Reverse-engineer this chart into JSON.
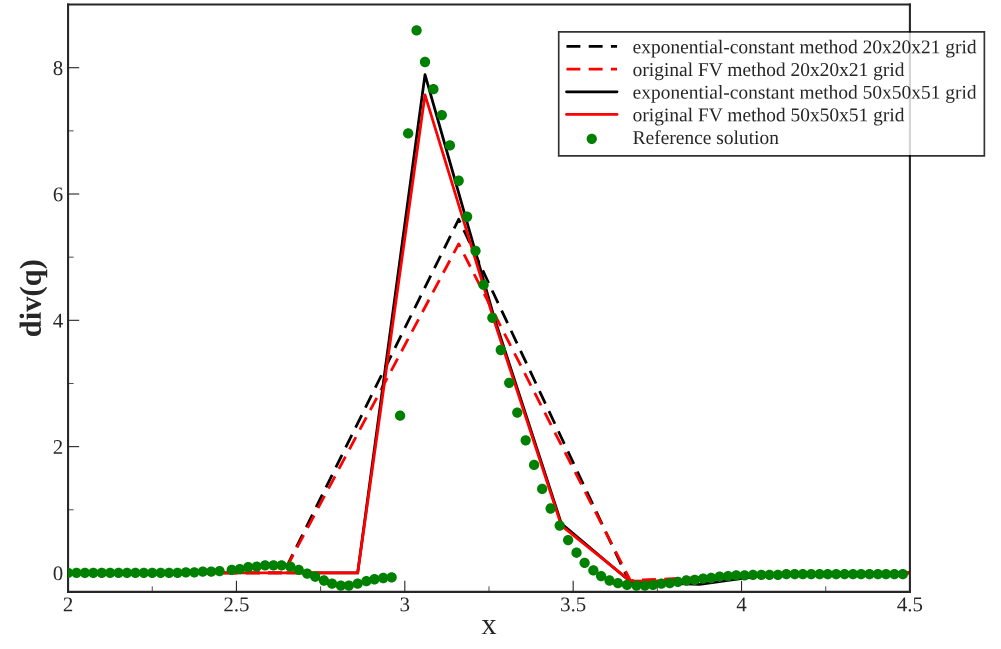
{
  "chart_data": {
    "type": "line",
    "xlabel": "x",
    "ylabel": "div(q)",
    "xlim": [
      2,
      4.5
    ],
    "ylim": [
      -0.3,
      9
    ],
    "xticks": [
      2,
      2.5,
      3,
      3.5,
      4,
      4.5
    ],
    "yticks": [
      0,
      2,
      4,
      6,
      8
    ],
    "grid": false,
    "legend": "top right",
    "series": [
      {
        "name": "exponential-constant method 20x20x21 grid",
        "line_style": "dashed",
        "color": "#000000",
        "x": [
          2.0,
          2.13,
          2.64,
          3.16,
          3.67,
          4.18,
          4.5
        ],
        "values": [
          0,
          0,
          0,
          5.6,
          -0.18,
          0,
          0
        ]
      },
      {
        "name": "original FV method 20x20x21 grid",
        "line_style": "dashed",
        "color": "#ff0000",
        "x": [
          2.0,
          2.13,
          2.64,
          3.16,
          3.67,
          4.18,
          4.5
        ],
        "values": [
          0,
          0,
          0,
          5.21,
          -0.12,
          0,
          0
        ]
      },
      {
        "name": "exponential-constant method 50x50x51 grid",
        "line_style": "solid",
        "color": "#000000",
        "x": [
          2.65,
          2.86,
          3.06,
          3.265,
          3.465,
          3.67,
          3.875,
          4.08,
          4.28,
          4.49,
          4.5
        ],
        "values": [
          0,
          0,
          7.89,
          4.05,
          0.78,
          -0.14,
          -0.18,
          -0.03,
          0,
          0,
          0
        ]
      },
      {
        "name": "original FV method 50x50x51 grid",
        "line_style": "solid",
        "color": "#ff0000",
        "x": [
          2.24,
          2.45,
          2.65,
          2.86,
          3.06,
          3.265,
          3.465,
          3.67,
          3.875,
          4.08,
          4.28,
          4.49,
          4.5
        ],
        "values": [
          0,
          0,
          0,
          0,
          7.57,
          4.0,
          0.75,
          -0.13,
          -0.12,
          -0.03,
          0,
          0,
          0
        ]
      },
      {
        "name": "Reference solution",
        "type": "scatter",
        "marker": "circle",
        "color": "#008000",
        "x": [
          2.0,
          2.025,
          2.05,
          2.075,
          2.1,
          2.125,
          2.15,
          2.175,
          2.2,
          2.225,
          2.25,
          2.275,
          2.3,
          2.325,
          2.35,
          2.375,
          2.4,
          2.425,
          2.45,
          2.486,
          2.51,
          2.535,
          2.56,
          2.585,
          2.61,
          2.634,
          2.66,
          2.685,
          2.71,
          2.734,
          2.76,
          2.784,
          2.81,
          2.834,
          2.86,
          2.886,
          2.91,
          2.936,
          2.961,
          2.986,
          3.01,
          3.035,
          3.06,
          3.085,
          3.11,
          3.134,
          3.16,
          3.185,
          3.21,
          3.234,
          3.26,
          3.285,
          3.31,
          3.334,
          3.359,
          3.384,
          3.408,
          3.433,
          3.46,
          3.485,
          3.51,
          3.534,
          3.56,
          3.583,
          3.608,
          3.633,
          3.66,
          3.688,
          3.713,
          3.737,
          3.762,
          3.787,
          3.811,
          3.836,
          3.861,
          3.886,
          3.91,
          3.935,
          3.96,
          3.984,
          4.009,
          4.034,
          4.059,
          4.083,
          4.108,
          4.133,
          4.158,
          4.182,
          4.207,
          4.232,
          4.256,
          4.281,
          4.306,
          4.331,
          4.355,
          4.38,
          4.405,
          4.429,
          4.454,
          4.479
        ],
        "values": [
          0,
          0,
          0,
          0,
          0,
          0,
          0,
          0,
          0,
          0,
          0,
          0,
          0,
          0,
          0.01,
          0.01,
          0.02,
          0.02,
          0.03,
          0.05,
          0.06,
          0.09,
          0.1,
          0.12,
          0.12,
          0.12,
          0.1,
          0.05,
          -0.01,
          -0.06,
          -0.12,
          -0.17,
          -0.2,
          -0.2,
          -0.17,
          -0.13,
          -0.1,
          -0.08,
          -0.07,
          2.49,
          6.96,
          8.59,
          8.09,
          7.66,
          7.25,
          6.77,
          6.21,
          5.64,
          5.1,
          4.56,
          4.04,
          3.53,
          3.01,
          2.54,
          2.1,
          1.71,
          1.33,
          1.02,
          0.75,
          0.52,
          0.32,
          0.16,
          0.04,
          -0.05,
          -0.12,
          -0.16,
          -0.19,
          -0.2,
          -0.2,
          -0.19,
          -0.17,
          -0.16,
          -0.14,
          -0.12,
          -0.11,
          -0.09,
          -0.08,
          -0.06,
          -0.05,
          -0.04,
          -0.04,
          -0.03,
          -0.03,
          -0.03,
          -0.03,
          -0.02,
          -0.02,
          -0.02,
          -0.02,
          -0.02,
          -0.02,
          -0.02,
          -0.02,
          -0.02,
          -0.02,
          -0.02,
          -0.02,
          -0.02,
          -0.02,
          -0.02
        ]
      }
    ]
  }
}
